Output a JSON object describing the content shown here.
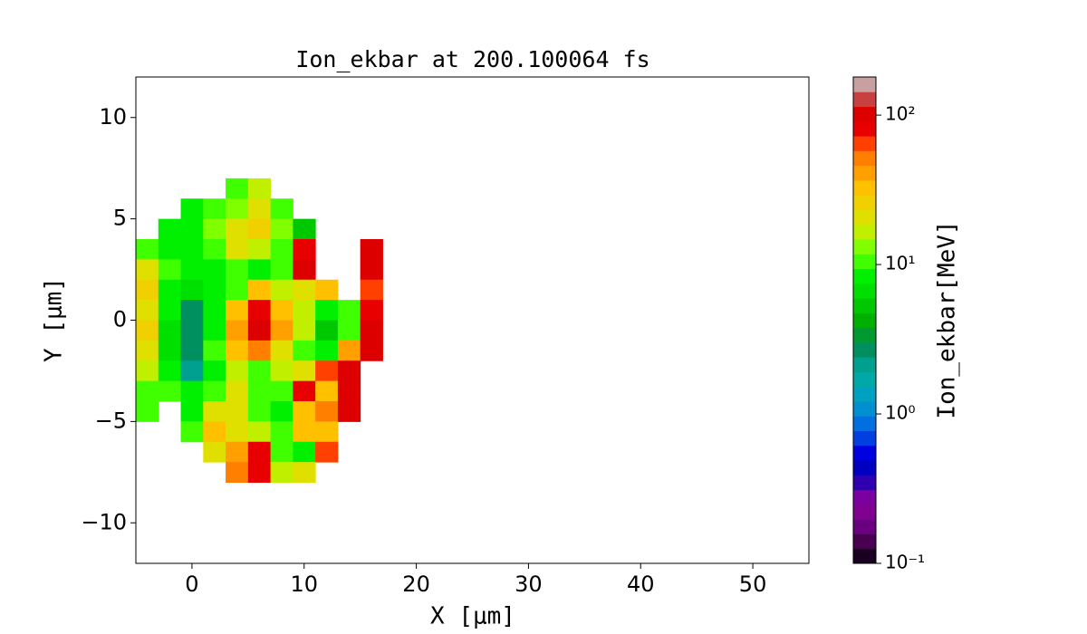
{
  "chart_data": {
    "type": "heatmap",
    "title": "Ion_ekbar at 200.100064 fs",
    "xlabel": "X [μm]",
    "ylabel": "Y [μm]",
    "colorbar_label": "Ion_ekbar[MeV]",
    "xlim": [
      -5,
      55
    ],
    "ylim": [
      -12,
      12
    ],
    "xticks": [
      0,
      10,
      20,
      30,
      40,
      50
    ],
    "yticks": [
      {
        "value": -10,
        "label": "−10"
      },
      {
        "value": -5,
        "label": "−5"
      },
      0,
      5,
      10
    ],
    "clim": [
      0.1,
      180
    ],
    "log_color": true,
    "cticks": [
      {
        "value": 0.1,
        "label": "10⁻¹"
      },
      {
        "value": 1,
        "label": "10⁰"
      },
      {
        "value": 10,
        "label": "10¹"
      },
      {
        "value": 100,
        "label": "10²"
      }
    ],
    "colormap": [
      "#1a0020",
      "#4a0050",
      "#6a0080",
      "#800090",
      "#7a00a0",
      "#3000b0",
      "#0000c0",
      "#0000e0",
      "#0040e0",
      "#0070e0",
      "#0090d0",
      "#00a0c0",
      "#00a8a8",
      "#00a090",
      "#009060",
      "#009a30",
      "#00b000",
      "#00c800",
      "#00e000",
      "#00f000",
      "#40ff00",
      "#80ff00",
      "#c0f000",
      "#e0e000",
      "#f0d000",
      "#ffc000",
      "#ffa000",
      "#ff8000",
      "#ff4000",
      "#e80000",
      "#dd0000",
      "#c84040",
      "#c8a0a0"
    ],
    "x_edges": [
      -5,
      -3,
      -1,
      1,
      3,
      5,
      7,
      9,
      11,
      13,
      15,
      17
    ],
    "y_edges": [
      7,
      6,
      5,
      4,
      3,
      2,
      1,
      0,
      -1,
      -2,
      -3,
      -4,
      -5,
      -6,
      -7,
      -8
    ],
    "z": [
      [
        null,
        null,
        null,
        null,
        10,
        15,
        null,
        null,
        null,
        null,
        null
      ],
      [
        null,
        null,
        8,
        10,
        12,
        20,
        10,
        null,
        null,
        null,
        null
      ],
      [
        null,
        8,
        8,
        12,
        20,
        25,
        12,
        5,
        null,
        null,
        null
      ],
      [
        10,
        8,
        8,
        10,
        20,
        15,
        10,
        80,
        null,
        null,
        100
      ],
      [
        20,
        10,
        8,
        8,
        10,
        8,
        10,
        100,
        null,
        null,
        100
      ],
      [
        25,
        8,
        6,
        8,
        10,
        30,
        15,
        20,
        30,
        null,
        60
      ],
      [
        20,
        8,
        3,
        8,
        30,
        80,
        30,
        15,
        8,
        10,
        80
      ],
      [
        25,
        6,
        3,
        8,
        40,
        100,
        40,
        15,
        5,
        10,
        100
      ],
      [
        20,
        6,
        3,
        10,
        30,
        50,
        20,
        10,
        8,
        40,
        100
      ],
      [
        15,
        8,
        2,
        8,
        15,
        10,
        15,
        20,
        60,
        100,
        null
      ],
      [
        10,
        10,
        8,
        10,
        20,
        10,
        10,
        80,
        30,
        100,
        null
      ],
      [
        10,
        null,
        8,
        20,
        20,
        10,
        8,
        30,
        50,
        100,
        null
      ],
      [
        null,
        null,
        10,
        30,
        20,
        15,
        10,
        30,
        30,
        null,
        null
      ],
      [
        null,
        null,
        null,
        20,
        40,
        80,
        10,
        8,
        60,
        null,
        null
      ],
      [
        null,
        null,
        null,
        null,
        50,
        80,
        15,
        20,
        null,
        null,
        null
      ]
    ]
  }
}
